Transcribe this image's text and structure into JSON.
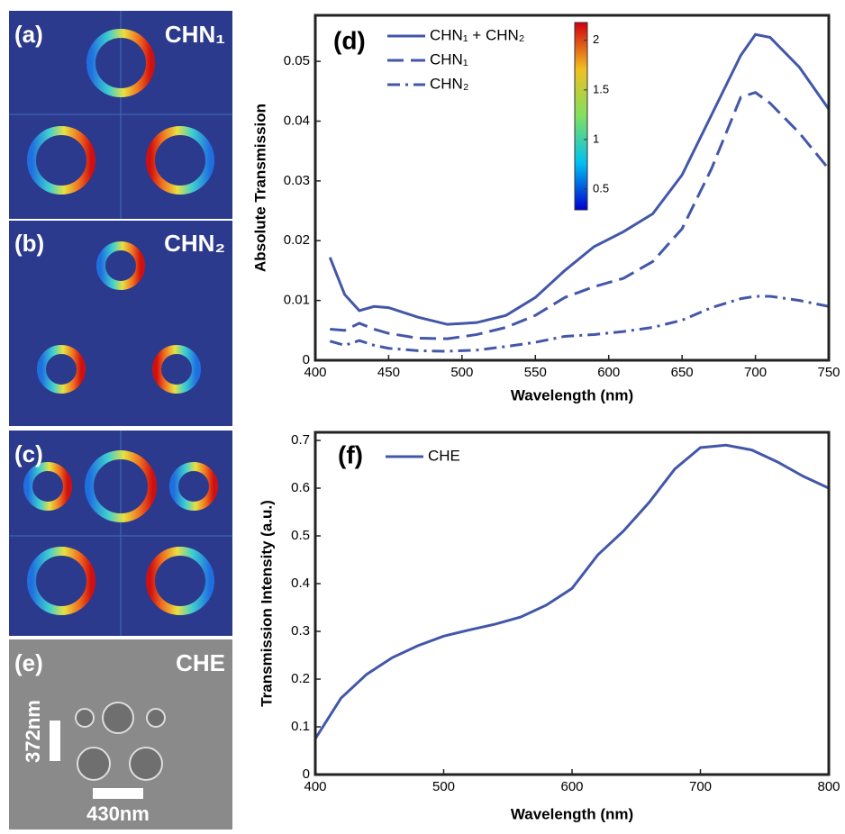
{
  "panels": [
    {
      "label": "(a)",
      "title": "CHN₁"
    },
    {
      "label": "(b)",
      "title": "CHN₂"
    },
    {
      "label": "(c)"
    },
    {
      "label": "(e)",
      "title": "CHE",
      "scale_labels": [
        "372nm",
        "430nm"
      ]
    }
  ],
  "colorbar": {
    "lim": [
      0.29,
      2.18
    ],
    "ticks": [
      0.5,
      1,
      1.5,
      2
    ]
  },
  "chart_data": [
    {
      "type": "line",
      "panel_label": "(d)",
      "x_label": "Wavelength (nm)",
      "y_label": "Absolute Transmission",
      "x": [
        410,
        420,
        430,
        440,
        450,
        470,
        490,
        510,
        530,
        550,
        570,
        590,
        610,
        630,
        650,
        670,
        690,
        700,
        710,
        730,
        750
      ],
      "xlim": [
        400,
        750
      ],
      "xticks": [
        400,
        450,
        500,
        550,
        600,
        650,
        700,
        750
      ],
      "ylim": [
        0,
        0.0577
      ],
      "yticks": [
        0,
        0.01,
        0.02,
        0.03,
        0.04,
        0.05
      ],
      "series": [
        {
          "name": "CHN₁ + CHN₂",
          "color": "#4357a8",
          "linestyle": "solid",
          "values": [
            0.0172,
            0.011,
            0.0083,
            0.009,
            0.0088,
            0.0072,
            0.006,
            0.0063,
            0.0075,
            0.0105,
            0.015,
            0.019,
            0.0215,
            0.0245,
            0.031,
            0.041,
            0.051,
            0.0545,
            0.054,
            0.049,
            0.042
          ]
        },
        {
          "name": "CHN₁",
          "color": "#4357a8",
          "linestyle": "dashed",
          "values": [
            0.0052,
            0.005,
            0.0062,
            0.0052,
            0.0045,
            0.0037,
            0.0036,
            0.0043,
            0.0055,
            0.0075,
            0.0105,
            0.0123,
            0.0137,
            0.0165,
            0.022,
            0.032,
            0.044,
            0.0448,
            0.043,
            0.038,
            0.032
          ]
        },
        {
          "name": "CHN₂",
          "color": "#4357a8",
          "linestyle": "dashdot",
          "values": [
            0.0032,
            0.0025,
            0.0033,
            0.0025,
            0.002,
            0.0016,
            0.0015,
            0.0017,
            0.0023,
            0.003,
            0.004,
            0.0043,
            0.0048,
            0.0055,
            0.0067,
            0.0088,
            0.0103,
            0.0107,
            0.0107,
            0.01,
            0.009
          ]
        }
      ]
    },
    {
      "type": "line",
      "panel_label": "(f)",
      "x_label": "Wavelength (nm)",
      "y_label": "Transmission Intensity (a.u.)",
      "x": [
        400,
        420,
        440,
        460,
        480,
        500,
        520,
        540,
        560,
        580,
        600,
        620,
        640,
        660,
        680,
        700,
        720,
        740,
        760,
        780,
        800
      ],
      "xlim": [
        400,
        800
      ],
      "xticks": [
        400,
        500,
        600,
        700,
        800
      ],
      "ylim": [
        0,
        0.717
      ],
      "yticks": [
        0,
        0.1,
        0.2,
        0.3,
        0.4,
        0.5,
        0.6,
        0.7
      ],
      "series": [
        {
          "name": "CHE",
          "color": "#4357a8",
          "linestyle": "solid",
          "values": [
            0.075,
            0.16,
            0.21,
            0.245,
            0.27,
            0.29,
            0.303,
            0.315,
            0.33,
            0.355,
            0.39,
            0.46,
            0.51,
            0.57,
            0.64,
            0.685,
            0.69,
            0.68,
            0.655,
            0.625,
            0.6
          ]
        }
      ]
    }
  ]
}
